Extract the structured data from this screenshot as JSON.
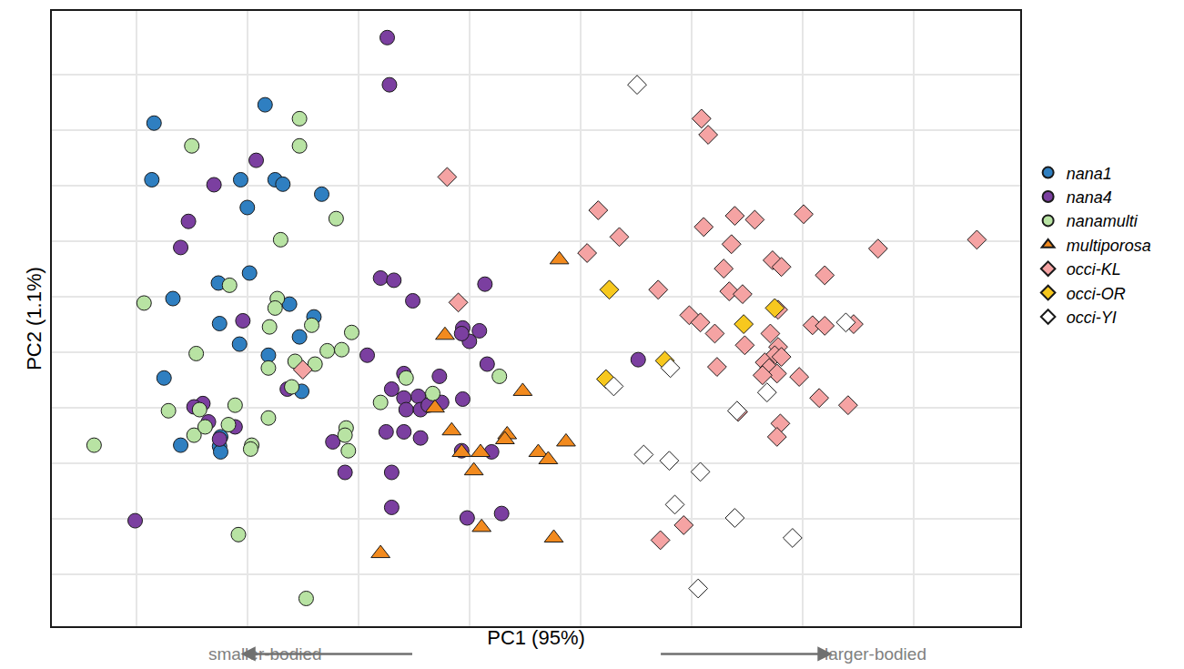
{
  "chart_data": {
    "type": "scatter",
    "xlabel": "PC1 (95%)",
    "ylabel": "PC2 (1.1%)",
    "annotations": [
      "smaller-bodied",
      "larger-bodied"
    ],
    "xlim": [
      -0.76,
      7.96
    ],
    "ylim": [
      -4.93,
      6.15
    ],
    "xticks": [
      0,
      1,
      2,
      3,
      4,
      5,
      6,
      7
    ],
    "yticks": [
      -4,
      -3,
      -2,
      -1,
      0,
      1,
      2,
      3,
      4,
      5
    ],
    "grid": true,
    "tick_labels": false,
    "legend": "right",
    "series": [
      {
        "name": "nana1",
        "color": "#2f7fc1",
        "marker": "circle",
        "x": [
          0.16,
          1.16,
          0.14,
          0.94,
          1.25,
          1.32,
          1.0,
          1.67,
          1.02,
          0.33,
          0.74,
          0.75,
          1.38,
          1.6,
          1.47,
          0.93,
          1.19,
          0.25,
          1.49,
          0.4,
          0.76,
          0.75,
          0.76
        ],
        "y": [
          4.13,
          4.46,
          3.11,
          3.11,
          3.11,
          3.03,
          2.61,
          2.85,
          1.43,
          0.97,
          1.25,
          0.52,
          0.87,
          0.64,
          0.28,
          0.15,
          -0.05,
          -0.46,
          -0.7,
          -1.67,
          -1.52,
          -1.69,
          -1.79
        ]
      },
      {
        "name": "nana4",
        "color": "#7b3fa0",
        "marker": "circle",
        "x": [
          2.26,
          2.28,
          0.7,
          0.47,
          0.4,
          1.08,
          0.96,
          2.2,
          2.32,
          2.49,
          3.14,
          2.94,
          2.08,
          3.0,
          2.93,
          3.16,
          1.36,
          0.6,
          0.52,
          0.65,
          0.89,
          0.75,
          2.3,
          2.41,
          2.41,
          2.54,
          2.43,
          2.56,
          2.63,
          2.73,
          2.94,
          2.25,
          2.41,
          2.56,
          1.77,
          2.93,
          3.2,
          1.88,
          2.3,
          2.3,
          2.98,
          3.29,
          -0.01,
          4.52,
          3.09,
          2.75
        ],
        "y": [
          5.67,
          4.82,
          3.02,
          2.36,
          1.89,
          3.46,
          0.57,
          1.34,
          1.3,
          0.93,
          1.23,
          0.44,
          -0.05,
          0.2,
          0.34,
          -0.21,
          -0.66,
          -0.92,
          -0.98,
          -1.25,
          -1.34,
          -1.56,
          -0.66,
          -0.38,
          -0.82,
          -0.79,
          -1.03,
          -1.03,
          -0.95,
          -0.43,
          -0.84,
          -1.43,
          -1.43,
          -1.54,
          -1.61,
          -1.77,
          -1.79,
          -2.16,
          -2.16,
          -2.79,
          -2.98,
          -2.9,
          -3.03,
          -0.13,
          0.39,
          -0.9
        ]
      },
      {
        "name": "nanamulti",
        "color": "#b8e3a3",
        "marker": "circle",
        "x": [
          0.5,
          1.47,
          1.47,
          1.8,
          1.3,
          0.07,
          0.84,
          1.27,
          1.25,
          1.58,
          1.2,
          1.94,
          0.54,
          1.19,
          1.43,
          1.61,
          1.72,
          1.85,
          1.4,
          0.29,
          0.57,
          0.89,
          1.19,
          0.52,
          0.83,
          1.04,
          1.03,
          -0.38,
          1.89,
          1.88,
          1.91,
          2.2,
          2.43,
          2.67,
          3.27,
          0.92,
          1.53,
          0.62
        ],
        "y": [
          3.72,
          4.21,
          3.72,
          2.41,
          2.03,
          0.89,
          1.21,
          0.97,
          0.8,
          0.49,
          0.46,
          0.36,
          -0.02,
          -0.28,
          -0.16,
          -0.21,
          0.03,
          0.05,
          -0.62,
          -1.05,
          -1.03,
          -0.95,
          -1.18,
          -1.49,
          -1.3,
          -1.67,
          -1.74,
          -1.67,
          -1.36,
          -1.49,
          -1.77,
          -0.9,
          -0.46,
          -0.74,
          -0.43,
          -3.28,
          -4.43,
          -1.34
        ]
      },
      {
        "name": "multiporosa",
        "color": "#f28a1e",
        "marker": "triangle-up",
        "x": [
          3.81,
          2.78,
          3.48,
          2.69,
          2.84,
          2.93,
          3.1,
          3.04,
          3.34,
          3.32,
          3.62,
          3.71,
          3.87,
          3.11,
          3.76,
          2.2
        ],
        "y": [
          1.67,
          0.31,
          -0.7,
          -1.0,
          -1.41,
          -1.8,
          -1.8,
          -2.13,
          -1.48,
          -1.57,
          -1.8,
          -1.93,
          -1.61,
          -3.15,
          -3.34,
          -3.62
        ]
      },
      {
        "name": "occi-KL",
        "color": "#f5a3a3",
        "marker": "diamond",
        "x": [
          5.09,
          5.15,
          2.8,
          4.16,
          4.35,
          4.06,
          5.11,
          5.39,
          5.57,
          6.01,
          5.36,
          5.29,
          5.73,
          5.81,
          6.68,
          7.57,
          6.2,
          2.9,
          4.7,
          5.34,
          5.46,
          4.98,
          5.08,
          5.21,
          5.78,
          6.09,
          6.2,
          6.46,
          5.71,
          5.78,
          5.75,
          5.81,
          5.48,
          5.66,
          5.7,
          5.23,
          5.77,
          5.97,
          5.42,
          5.8,
          5.77,
          6.15,
          6.41,
          4.93,
          4.72,
          1.5,
          5.64
        ],
        "y": [
          4.21,
          3.92,
          3.16,
          2.56,
          2.08,
          1.79,
          2.26,
          2.46,
          2.39,
          2.49,
          1.95,
          1.51,
          1.66,
          1.54,
          1.87,
          2.03,
          1.39,
          0.9,
          1.13,
          1.1,
          1.05,
          0.67,
          0.54,
          0.34,
          0.77,
          0.49,
          0.48,
          0.51,
          0.34,
          0.1,
          -0.05,
          -0.08,
          0.13,
          -0.18,
          -0.28,
          -0.26,
          -0.38,
          -0.44,
          -1.07,
          -1.28,
          -1.52,
          -0.82,
          -0.95,
          -3.11,
          -3.38,
          -0.31,
          -0.41
        ]
      },
      {
        "name": "occi-OR",
        "color": "#f7c81e",
        "marker": "diamond",
        "x": [
          4.26,
          5.75,
          5.47,
          4.23,
          4.76
        ],
        "y": [
          1.13,
          0.8,
          0.51,
          -0.48,
          -0.15
        ]
      },
      {
        "name": "occi-YI",
        "color": "#ffffff",
        "marker": "diamond",
        "x": [
          4.51,
          4.3,
          4.81,
          5.68,
          5.41,
          6.39,
          4.57,
          4.8,
          5.08,
          4.85,
          5.39,
          5.91,
          5.06
        ],
        "y": [
          4.82,
          -0.61,
          -0.28,
          -0.72,
          -1.05,
          0.54,
          -1.84,
          -1.95,
          -2.15,
          -2.74,
          -2.98,
          -3.34,
          -4.25
        ]
      }
    ]
  }
}
